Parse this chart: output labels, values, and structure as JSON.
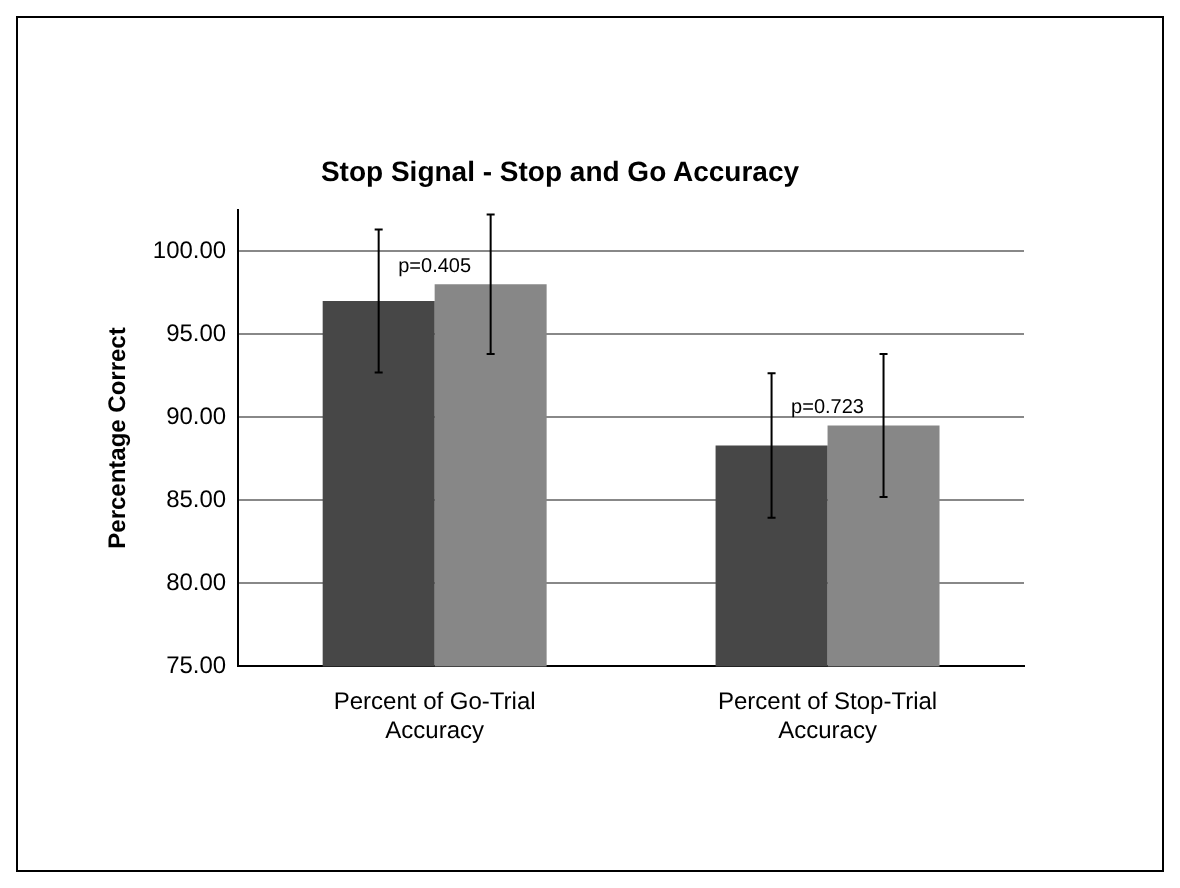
{
  "chart_data": {
    "type": "bar",
    "title": "Stop Signal - Stop and Go Accuracy",
    "ylabel": "Percentage Correct",
    "categories": [
      "Percent of Go-Trial Accuracy",
      "Percent of Stop-Trial Accuracy"
    ],
    "series": [
      {
        "color": "#474747",
        "values": [
          97.0,
          88.3
        ],
        "errors": [
          4.3,
          4.35
        ]
      },
      {
        "color": "#878787",
        "values": [
          98.0,
          89.5
        ],
        "errors": [
          4.2,
          4.3
        ]
      }
    ],
    "ylim": [
      75,
      102.5
    ],
    "yticks": [
      {
        "value": 75,
        "label": "75.00"
      },
      {
        "value": 80,
        "label": "80.00"
      },
      {
        "value": 85,
        "label": "85.00"
      },
      {
        "value": 90,
        "label": "90.00"
      },
      {
        "value": 95,
        "label": "95.00"
      },
      {
        "value": 100,
        "label": "100.00"
      }
    ],
    "grid": "y",
    "legend": false,
    "annotations": [
      "p=0.405",
      "p=0.723"
    ]
  }
}
